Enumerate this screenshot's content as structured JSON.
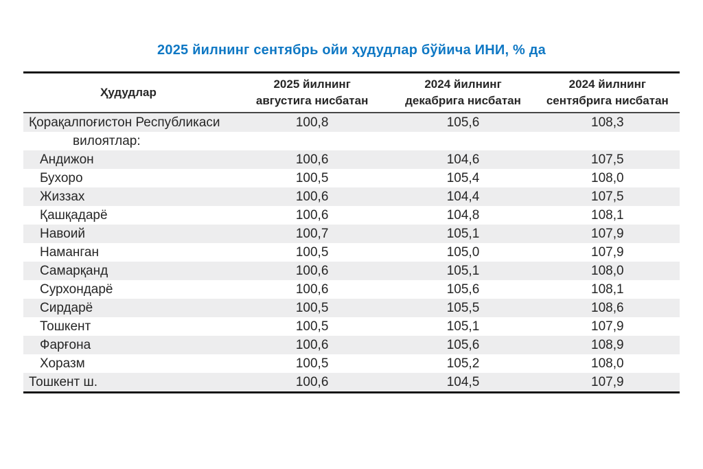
{
  "title": "2025 йилнинг сентябрь ойи ҳудудлар бўйича ИНИ, % да",
  "colors": {
    "title_blue": "#0f78c4",
    "row_stripe": "#ededee",
    "border_black": "#141414"
  },
  "table": {
    "region_header": "Ҳудудлар",
    "col_headers": [
      {
        "l1": "2025 йилнинг",
        "l2": "августига нисбатан"
      },
      {
        "l1": "2024 йилнинг",
        "l2": "декабрига нисбатан"
      },
      {
        "l1": "2024 йилнинг",
        "l2": "сентябрига нисбатан"
      }
    ],
    "rows": [
      {
        "region": "Қорақалпоғистон Республикаси",
        "v1": "100,8",
        "v2": "105,6",
        "v3": "108,3"
      },
      {
        "region": "вилоятлар:",
        "v1": "",
        "v2": "",
        "v3": ""
      },
      {
        "region": "Андижон",
        "v1": "100,6",
        "v2": "104,6",
        "v3": "107,5"
      },
      {
        "region": "Бухоро",
        "v1": "100,5",
        "v2": "105,4",
        "v3": "108,0"
      },
      {
        "region": "Жиззах",
        "v1": "100,6",
        "v2": "104,4",
        "v3": "107,5"
      },
      {
        "region": "Қашқадарё",
        "v1": "100,6",
        "v2": "104,8",
        "v3": "108,1"
      },
      {
        "region": "Навоий",
        "v1": "100,7",
        "v2": "105,1",
        "v3": "107,9"
      },
      {
        "region": "Наманган",
        "v1": "100,5",
        "v2": "105,0",
        "v3": "107,9"
      },
      {
        "region": "Самарқанд",
        "v1": "100,6",
        "v2": "105,1",
        "v3": "108,0"
      },
      {
        "region": "Сурхондарё",
        "v1": "100,6",
        "v2": "105,6",
        "v3": "108,1"
      },
      {
        "region": "Сирдарё",
        "v1": "100,5",
        "v2": "105,5",
        "v3": "108,6"
      },
      {
        "region": "Тошкент",
        "v1": "100,5",
        "v2": "105,1",
        "v3": "107,9"
      },
      {
        "region": "Фарғона",
        "v1": "100,6",
        "v2": "105,6",
        "v3": "108,9"
      },
      {
        "region": "Хоразм",
        "v1": "100,5",
        "v2": "105,2",
        "v3": "108,0"
      },
      {
        "region": "Тошкент ш.",
        "v1": "100,6",
        "v2": "104,5",
        "v3": "107,9"
      }
    ]
  },
  "chart_data": {
    "type": "table",
    "title": "2025 йилнинг сентябрь ойи ҳудудлар бўйича ИНИ, % да",
    "columns": [
      "Ҳудудлар",
      "2025 йилнинг августига нисбатан",
      "2024 йилнинг декабрига нисбатан",
      "2024 йилнинг сентябрига нисбатан"
    ],
    "rows": [
      [
        "Қорақалпоғистон Республикаси",
        100.8,
        105.6,
        108.3
      ],
      [
        "вилоятлар:",
        null,
        null,
        null
      ],
      [
        "Андижон",
        100.6,
        104.6,
        107.5
      ],
      [
        "Бухоро",
        100.5,
        105.4,
        108.0
      ],
      [
        "Жиззах",
        100.6,
        104.4,
        107.5
      ],
      [
        "Қашқадарё",
        100.6,
        104.8,
        108.1
      ],
      [
        "Навоий",
        100.7,
        105.1,
        107.9
      ],
      [
        "Наманган",
        100.5,
        105.0,
        107.9
      ],
      [
        "Самарқанд",
        100.6,
        105.1,
        108.0
      ],
      [
        "Сурхондарё",
        100.6,
        105.6,
        108.1
      ],
      [
        "Сирдарё",
        100.5,
        105.5,
        108.6
      ],
      [
        "Тошкент",
        100.5,
        105.1,
        107.9
      ],
      [
        "Фарғона",
        100.6,
        105.6,
        108.9
      ],
      [
        "Хоразм",
        100.5,
        105.2,
        108.0
      ],
      [
        "Тошкент ш.",
        100.6,
        104.5,
        107.9
      ]
    ],
    "value_format": "comma-decimal, percent index",
    "layout": "striped rows, thick black top/bottom rules, thin rule under header"
  }
}
